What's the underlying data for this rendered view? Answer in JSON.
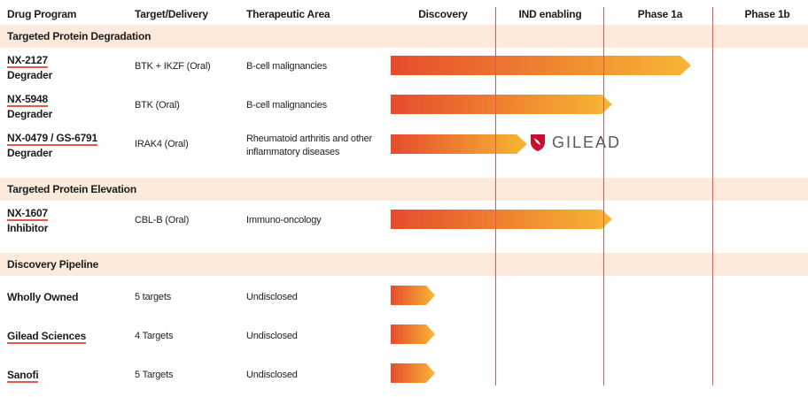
{
  "headers": {
    "drug_program": "Drug Program",
    "target_delivery": "Target/Delivery",
    "therapeutic_area": "Therapeutic Area",
    "discovery": "Discovery",
    "ind_enabling": "IND enabling",
    "phase_1a": "Phase 1a",
    "phase_1b": "Phase 1b"
  },
  "sections": {
    "tpd": "Targeted Protein Degradation",
    "tpe": "Targeted Protein Elevation",
    "discovery_pipeline": "Discovery Pipeline"
  },
  "programs": [
    {
      "name": "NX-2127",
      "type": "Degrader",
      "target": "BTK + IKZF (Oral)",
      "area": "B-cell malignancies",
      "stage": "Phase 1a"
    },
    {
      "name": "NX-5948",
      "type": "Degrader",
      "target": "BTK (Oral)",
      "area": "B-cell malignancies",
      "stage": "IND enabling"
    },
    {
      "name": "NX-0479 / GS-6791",
      "type": "Degrader",
      "target": "IRAK4 (Oral)",
      "area_line1": "Rheumatoid arthritis and other",
      "area_line2": "inflammatory diseases",
      "stage": "IND enabling",
      "partner": "GILEAD"
    },
    {
      "name": "NX-1607",
      "type": "Inhibitor",
      "target": "CBL-B (Oral)",
      "area": "Immuno-oncology",
      "stage": "IND enabling"
    }
  ],
  "discovery": [
    {
      "name": "Wholly Owned",
      "targets": "5 targets",
      "area": "Undisclosed",
      "stage": "Discovery"
    },
    {
      "name": "Gilead Sciences",
      "targets": "4 Targets",
      "area": "Undisclosed",
      "stage": "Discovery"
    },
    {
      "name": "Sanofi",
      "targets": "5 Targets",
      "area": "Undisclosed",
      "stage": "Discovery"
    }
  ],
  "colors": {
    "bar_start": "#e64b2d",
    "bar_end": "#f7b733",
    "section_bg": "#fcebdc",
    "divider": "#e4574d"
  }
}
